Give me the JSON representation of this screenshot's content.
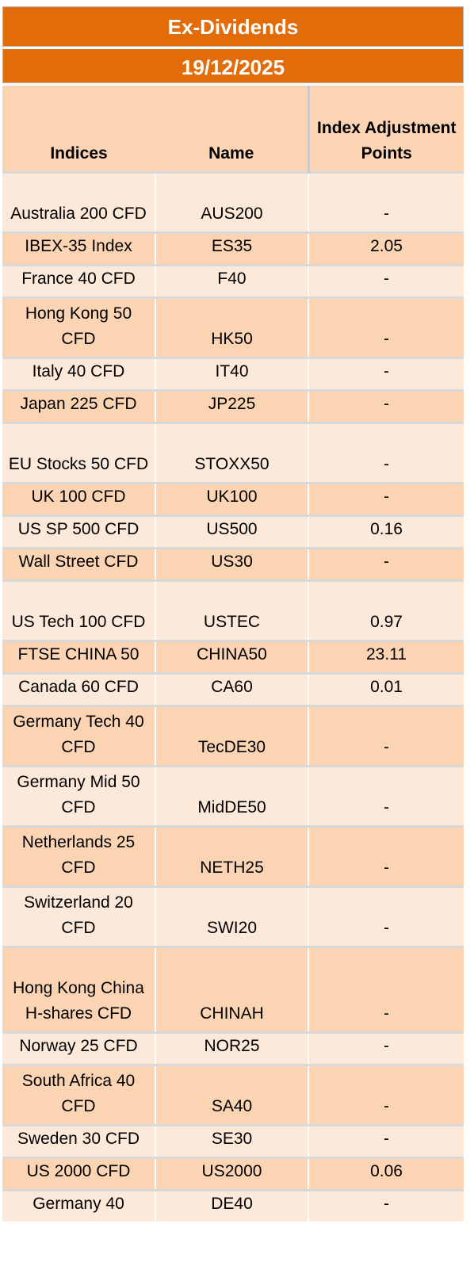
{
  "title": "Ex-Dividends",
  "date": "19/12/2025",
  "headers": {
    "indices": "Indices",
    "name": "Name",
    "points": "Index Adjustment Points"
  },
  "rows": [
    {
      "index": "Australia 200 CFD",
      "name": "AUS200",
      "points": "-"
    },
    {
      "index": "IBEX-35 Index",
      "name": "ES35",
      "points": "2.05"
    },
    {
      "index": "France 40 CFD",
      "name": "F40",
      "points": "-"
    },
    {
      "index": "Hong Kong 50 CFD",
      "name": "HK50",
      "points": "-"
    },
    {
      "index": "Italy 40 CFD",
      "name": "IT40",
      "points": "-"
    },
    {
      "index": "Japan 225 CFD",
      "name": "JP225",
      "points": "-"
    },
    {
      "index": "EU Stocks 50 CFD",
      "name": "STOXX50",
      "points": "-"
    },
    {
      "index": "UK 100 CFD",
      "name": "UK100",
      "points": "-"
    },
    {
      "index": "US SP 500 CFD",
      "name": "US500",
      "points": "0.16"
    },
    {
      "index": "Wall Street CFD",
      "name": "US30",
      "points": "-"
    },
    {
      "index": "US Tech 100 CFD",
      "name": "USTEC",
      "points": "0.97"
    },
    {
      "index": "FTSE CHINA 50",
      "name": "CHINA50",
      "points": "23.11"
    },
    {
      "index": "Canada 60 CFD",
      "name": "CA60",
      "points": "0.01"
    },
    {
      "index": "Germany Tech 40 CFD",
      "name": "TecDE30",
      "points": "-"
    },
    {
      "index": "Germany Mid 50 CFD",
      "name": "MidDE50",
      "points": "-"
    },
    {
      "index": "Netherlands 25 CFD",
      "name": "NETH25",
      "points": "-"
    },
    {
      "index": "Switzerland 20 CFD",
      "name": "SWI20",
      "points": "-"
    },
    {
      "index": "Hong Kong China H-shares CFD",
      "name": "CHINAH",
      "points": "-"
    },
    {
      "index": "Norway 25 CFD",
      "name": "NOR25",
      "points": "-"
    },
    {
      "index": "South Africa 40 CFD",
      "name": "SA40",
      "points": "-"
    },
    {
      "index": "Sweden 30 CFD",
      "name": "SE30",
      "points": "-"
    },
    {
      "index": "US 2000 CFD",
      "name": "US2000",
      "points": "0.06"
    },
    {
      "index": "Germany 40",
      "name": "DE40",
      "points": "-"
    }
  ]
}
